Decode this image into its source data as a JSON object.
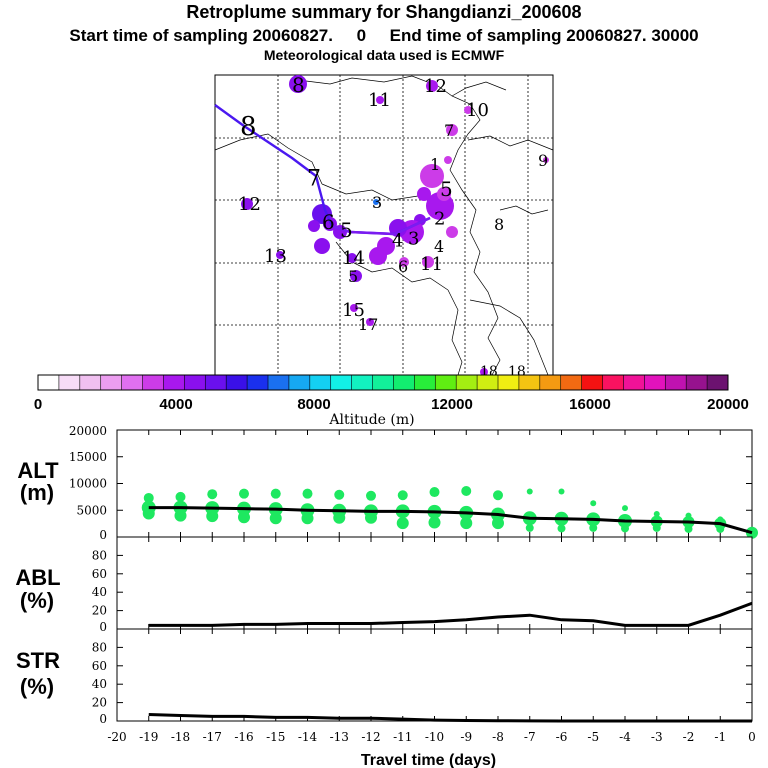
{
  "header": {
    "title": "Retroplume summary for Shangdianzi_200608",
    "sampling": "Start time of sampling 20060827.     0     End time of sampling 20060827. 30000",
    "met": "Meteorological data used is ECMWF"
  },
  "colors": {
    "trajectory": "#7a1cf0",
    "trajectory_early": "#4a18f0",
    "alt_points": "#1ee860",
    "colorbar": [
      "#ffffff",
      "#f7dcf7",
      "#f0c0f0",
      "#ec9ef0",
      "#e070f0",
      "#cc3ce8",
      "#a818ee",
      "#8a10ee",
      "#6a10ee",
      "#3a10e8",
      "#1a30ee",
      "#1a70f0",
      "#16a8f2",
      "#14d0f2",
      "#12f0e6",
      "#12f2c0",
      "#12f09a",
      "#12ee70",
      "#28ee3a",
      "#60ee12",
      "#a4ee12",
      "#d0ee12",
      "#f0ee12",
      "#f4c412",
      "#f49a12",
      "#f26a12",
      "#f41212",
      "#fa1260",
      "#f01298",
      "#e212bc",
      "#c012b0",
      "#96128e",
      "#6c1270"
    ]
  },
  "colorbar": {
    "ticks": [
      "0",
      "4000",
      "8000",
      "12000",
      "16000",
      "20000"
    ],
    "label": "Altitude (m)"
  },
  "chart_data": [
    {
      "type": "scatter",
      "name": "retroplume-map",
      "trajectory_labels": [
        {
          "text": "8",
          "day": 8
        },
        {
          "text": "7",
          "day": 7
        },
        {
          "text": "6",
          "day": 6
        },
        {
          "text": "5",
          "day": 5
        },
        {
          "text": "4",
          "day": 4
        },
        {
          "text": "3",
          "day": 3
        },
        {
          "text": "2",
          "day": 2
        }
      ],
      "cluster_labels": [
        "8",
        "11",
        "12",
        "10",
        "7",
        "9",
        "12",
        "3",
        "1",
        "5",
        "8",
        "4",
        "13",
        "14",
        "5",
        "6",
        "11",
        "15",
        "17",
        "18",
        "18"
      ]
    },
    {
      "type": "scatter",
      "name": "ALT",
      "ylabel": "ALT\n(m)",
      "ylim": [
        0,
        20000
      ],
      "yticks": [
        "20000",
        "15000",
        "10000",
        "5000",
        "0"
      ],
      "x": [
        -19,
        -18,
        -17,
        -16,
        -15,
        -14,
        -13,
        -12,
        -11,
        -10,
        -9,
        -8,
        -7,
        -6,
        -5,
        -4,
        -3,
        -2,
        -1,
        0
      ],
      "mean_altitude_m": [
        5500,
        5500,
        5400,
        5300,
        5200,
        5000,
        4900,
        4800,
        4800,
        4700,
        4500,
        4200,
        3500,
        3400,
        3300,
        3000,
        2900,
        2800,
        2500,
        800
      ],
      "upper_altitude_m": [
        7300,
        7500,
        8000,
        8100,
        8100,
        8100,
        7900,
        7700,
        7800,
        8400,
        8600,
        7800,
        8500,
        8500,
        6300,
        5400,
        4300,
        4000,
        3300,
        1200
      ],
      "lower_altitude_m": [
        4400,
        4000,
        3900,
        3700,
        3500,
        3500,
        3600,
        3600,
        2600,
        2700,
        2600,
        2600,
        1700,
        1600,
        1700,
        1600,
        1700,
        1500,
        1500,
        700
      ]
    },
    {
      "type": "line",
      "name": "ABL",
      "ylabel": "ABL\n(%)",
      "ylim": [
        0,
        100
      ],
      "yticks": [
        "80",
        "60",
        "40",
        "20",
        "0"
      ],
      "x": [
        -19,
        -18,
        -17,
        -16,
        -15,
        -14,
        -13,
        -12,
        -11,
        -10,
        -9,
        -8,
        -7,
        -6,
        -5,
        -4,
        -3,
        -2,
        -1,
        0
      ],
      "values": [
        4,
        4,
        4,
        5,
        5,
        6,
        6,
        6,
        7,
        8,
        10,
        13,
        15,
        10,
        9,
        4,
        4,
        4,
        15,
        28
      ]
    },
    {
      "type": "line",
      "name": "STR",
      "ylabel": "STR\n(%)",
      "ylim": [
        0,
        100
      ],
      "yticks": [
        "80",
        "60",
        "40",
        "20",
        "0"
      ],
      "x": [
        -19,
        -18,
        -17,
        -16,
        -15,
        -14,
        -13,
        -12,
        -11,
        -10,
        -9,
        -8,
        -7,
        -6,
        -5,
        -4,
        -3,
        -2,
        -1,
        0
      ],
      "values": [
        7,
        6,
        5,
        5,
        4,
        4,
        3,
        3,
        2,
        1,
        0.5,
        0.3,
        0.2,
        0,
        0,
        0,
        0,
        0,
        0,
        0
      ],
      "xticks": [
        "-20",
        "-19",
        "-18",
        "-17",
        "-16",
        "-15",
        "-14",
        "-13",
        "-12",
        "-11",
        "-10",
        "-9",
        "-8",
        "-7",
        "-6",
        "-5",
        "-4",
        "-3",
        "-2",
        "-1",
        "0"
      ],
      "xlabel": "Travel time (days)"
    }
  ]
}
